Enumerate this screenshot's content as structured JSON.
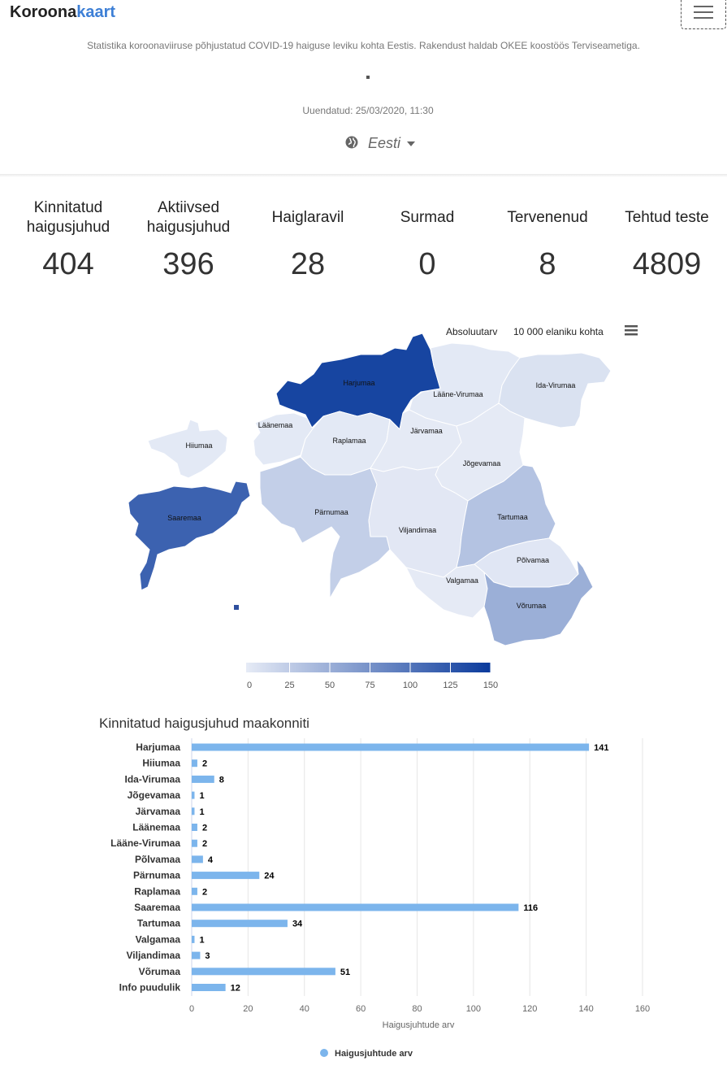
{
  "nav": {
    "brand_part1": "Koroona",
    "brand_part2": "kaart"
  },
  "header": {
    "description": "Statistika koroonaviiruse põhjustatud COVID-19 haiguse leviku kohta Eestis. Rakendust haldab OKEE koostöös Terviseametiga.",
    "updated": "Uuendatud: 25/03/2020, 11:30",
    "language": "Eesti"
  },
  "stats": [
    {
      "label": "Kinnitatud haigusjuhud",
      "value": "404"
    },
    {
      "label": "Aktiivsed haigusjuhud",
      "value": "396"
    },
    {
      "label": "Haiglaravil",
      "value": "28"
    },
    {
      "label": "Surmad",
      "value": "0"
    },
    {
      "label": "Tervenenud",
      "value": "8"
    },
    {
      "label": "Tehtud teste",
      "value": "4809"
    }
  ],
  "map": {
    "toggle_absolute": "Absoluutarv",
    "toggle_per_capita": "10 000 elaniku kohta",
    "regions": [
      {
        "name": "Harjumaa",
        "value": 141
      },
      {
        "name": "Lääne-Virumaa",
        "value": 2
      },
      {
        "name": "Ida-Virumaa",
        "value": 8
      },
      {
        "name": "Läänemaa",
        "value": 2
      },
      {
        "name": "Hiiumaa",
        "value": 2
      },
      {
        "name": "Raplamaa",
        "value": 2
      },
      {
        "name": "Järvamaa",
        "value": 1
      },
      {
        "name": "Jõgevamaa",
        "value": 1
      },
      {
        "name": "Saaremaa",
        "value": 116
      },
      {
        "name": "Pärnumaa",
        "value": 24
      },
      {
        "name": "Viljandimaa",
        "value": 3
      },
      {
        "name": "Tartumaa",
        "value": 34
      },
      {
        "name": "Põlvamaa",
        "value": 4
      },
      {
        "name": "Valgamaa",
        "value": 1
      },
      {
        "name": "Võrumaa",
        "value": 51
      }
    ],
    "legend_ticks": [
      "0",
      "25",
      "50",
      "75",
      "100",
      "125",
      "150"
    ],
    "color_min": "#e6ebf6",
    "color_max": "#0a3a9c"
  },
  "chart_data": {
    "type": "bar",
    "title": "Kinnitatud haigusjuhud maakonniti",
    "categories": [
      "Harjumaa",
      "Hiiumaa",
      "Ida-Virumaa",
      "Jõgevamaa",
      "Järvamaa",
      "Läänemaa",
      "Lääne-Virumaa",
      "Põlvamaa",
      "Pärnumaa",
      "Raplamaa",
      "Saaremaa",
      "Tartumaa",
      "Valgamaa",
      "Viljandimaa",
      "Võrumaa",
      "Info puudulik"
    ],
    "series": [
      {
        "name": "Haigusjuhtude arv",
        "values": [
          141,
          2,
          8,
          1,
          1,
          2,
          2,
          4,
          24,
          2,
          116,
          34,
          1,
          3,
          51,
          12
        ]
      }
    ],
    "xlabel": "Haigusjuhtude arv",
    "ylabel": "",
    "xlim": [
      0,
      160
    ],
    "ticks": [
      "0",
      "20",
      "40",
      "60",
      "80",
      "100",
      "120",
      "140",
      "160"
    ],
    "grid": true,
    "legend": "bottom",
    "bar_color": "#7cb5ec"
  }
}
